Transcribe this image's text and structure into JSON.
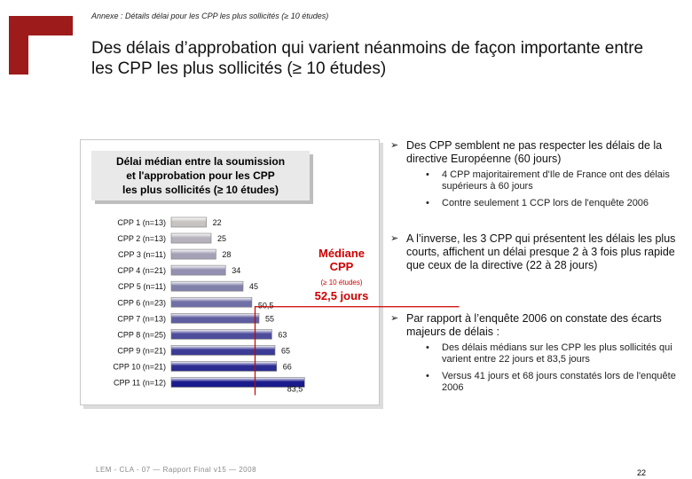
{
  "header": {
    "annex": "Annexe : Détails délai pour les CPP les plus sollicités (≥ 10 études)",
    "title": "Des délais d’approbation qui varient néanmoins de façon importante entre les CPP les plus sollicités (≥ 10 études)"
  },
  "chart_title": {
    "line1": "Délai médian entre la soumission",
    "line2": "et l'approbation pour les CPP",
    "line3": "les plus sollicités (≥ 10 études)"
  },
  "median": {
    "label1": "Médiane",
    "label2": "CPP",
    "label3": "(≥ 10 études)",
    "value_label": "52,5 jours"
  },
  "chart_data": {
    "type": "bar",
    "orientation": "horizontal",
    "title": "Délai médian entre la soumission et l'approbation pour les CPP les plus sollicités (≥ 10 études)",
    "categories": [
      "CPP 1 (n=13)",
      "CPP 2 (n=13)",
      "CPP 3 (n=11)",
      "CPP 4 (n=21)",
      "CPP 5 (n=11)",
      "CPP 6 (n=23)",
      "CPP 7 (n=13)",
      "CPP 8 (n=25)",
      "CPP 9 (n=21)",
      "CPP 10 (n=21)",
      "CPP 11 (n=12)"
    ],
    "values": [
      22,
      25,
      28,
      34,
      45,
      50.5,
      55,
      63,
      65,
      66,
      83.5
    ],
    "value_labels": [
      "22",
      "25",
      "28",
      "34",
      "45",
      "50,5",
      "55",
      "63",
      "65",
      "66",
      "83,5"
    ],
    "reference_line": {
      "value": 52.5,
      "label": "52,5 jours"
    },
    "bar_color_from": "#f7f3cf",
    "bar_color_to": "#1a1a8c",
    "reference_color": "#cc0000",
    "grid": false
  },
  "right_panel": {
    "sections": [
      {
        "text": "Des CPP semblent ne pas respecter les délais de la directive Européenne (60 jours)",
        "subs": [
          "4 CPP majoritairement d'Ile de France ont des délais supérieurs à 60 jours",
          "Contre seulement 1 CCP lors de l'enquête 2006"
        ]
      },
      {
        "text": "A l’inverse, les 3 CPP qui présentent les délais les plus courts, affichent un délai presque 2 à 3 fois plus rapide que ceux de la directive (22 à 28 jours)",
        "subs": []
      },
      {
        "text": "Par rapport à l’enquête 2006 on constate des écarts majeurs de délais :",
        "subs": [
          "Des délais médians sur les CPP les plus sollicités qui varient entre 22 jours et 83,5 jours",
          "Versus 41 jours et 68 jours constatés lors de l'enquête 2006"
        ]
      }
    ]
  },
  "footer": {
    "text": "LEM - CLA - 07 — Rapport Final v15 — 2008",
    "page": "22"
  },
  "colors": {
    "logo": "#9e1b1b",
    "accent": "#cc0000"
  }
}
